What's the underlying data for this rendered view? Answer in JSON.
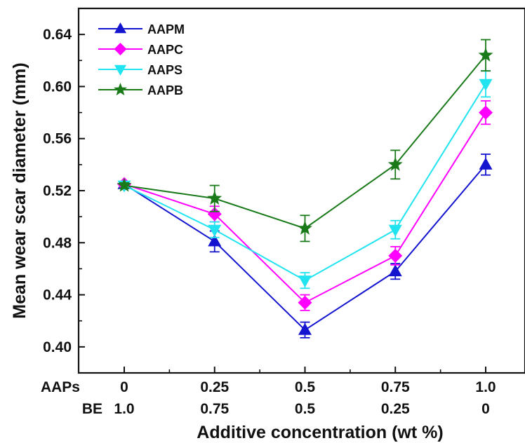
{
  "chart_data": {
    "type": "line",
    "xlabel": "Additive concentration (wt %)",
    "ylabel": "Mean wear scar diameter (mm)",
    "ylim": [
      0.38,
      0.66
    ],
    "yticks": [
      0.4,
      0.44,
      0.48,
      0.52,
      0.56,
      0.6,
      0.64
    ],
    "x_positions": [
      0,
      0.25,
      0.5,
      0.75,
      1.0
    ],
    "x_tick_rows": [
      {
        "name": "AAPs",
        "labels": [
          "0",
          "0.25",
          "0.5",
          "0.75",
          "1.0"
        ]
      },
      {
        "name": "BE",
        "labels": [
          "1.0",
          "0.75",
          "0.5",
          "0.25",
          "0"
        ]
      }
    ],
    "legend_position": "top-left",
    "grid": false,
    "series": [
      {
        "name": "AAPM",
        "color": "#1515d0",
        "marker": "triangle-up",
        "values": [
          0.525,
          0.481,
          0.413,
          0.458,
          0.54
        ],
        "errors": [
          0.002,
          0.008,
          0.006,
          0.006,
          0.008
        ]
      },
      {
        "name": "AAPC",
        "color": "#ff00ff",
        "marker": "diamond",
        "values": [
          0.525,
          0.502,
          0.434,
          0.47,
          0.58
        ],
        "errors": [
          0.002,
          0.006,
          0.006,
          0.007,
          0.009
        ]
      },
      {
        "name": "AAPS",
        "color": "#22e4f0",
        "marker": "triangle-down",
        "values": [
          0.524,
          0.49,
          0.451,
          0.49,
          0.602
        ],
        "errors": [
          0.002,
          0.006,
          0.006,
          0.007,
          0.01
        ]
      },
      {
        "name": "AAPB",
        "color": "#1a7a1a",
        "marker": "star",
        "values": [
          0.524,
          0.514,
          0.491,
          0.54,
          0.624
        ],
        "errors": [
          0.002,
          0.01,
          0.01,
          0.011,
          0.012
        ]
      }
    ]
  }
}
